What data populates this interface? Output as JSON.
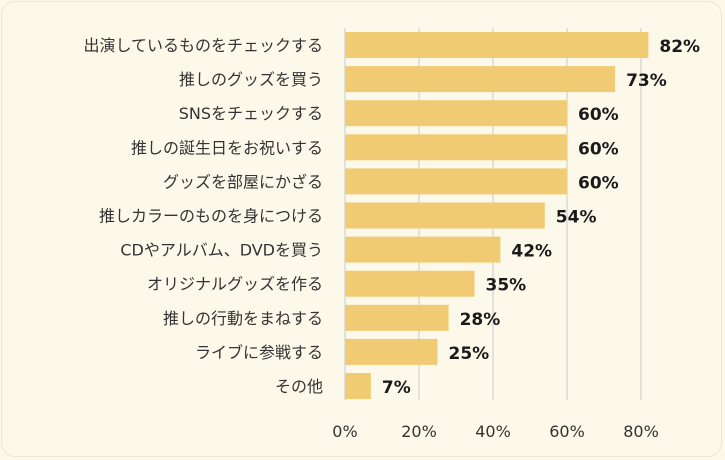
{
  "chart_data": {
    "type": "bar",
    "orientation": "horizontal",
    "categories": [
      "出演しているものをチェックする",
      "推しのグッズを買う",
      "SNSをチェックする",
      "推しの誕生日をお祝いする",
      "グッズを部屋にかざる",
      "推しカラーのものを身につける",
      "CDやアルバム、DVDを買う",
      "オリジナルグッズを作る",
      "推しの行動をまねする",
      "ライブに参戦する",
      "その他"
    ],
    "values": [
      82,
      73,
      60,
      60,
      60,
      54,
      42,
      35,
      28,
      25,
      7
    ],
    "value_labels": [
      "82%",
      "73%",
      "60%",
      "60%",
      "60%",
      "54%",
      "42%",
      "35%",
      "28%",
      "25%",
      "7%"
    ],
    "xlim": [
      0,
      100
    ],
    "x_ticks": [
      0,
      20,
      40,
      60,
      80
    ],
    "x_tick_labels": [
      "0%",
      "20%",
      "40%",
      "60%",
      "80%"
    ],
    "grid": true,
    "colors": {
      "bar": "#f0cb73",
      "grid": "#d9d9d9",
      "background": "#fdf9ea"
    }
  }
}
